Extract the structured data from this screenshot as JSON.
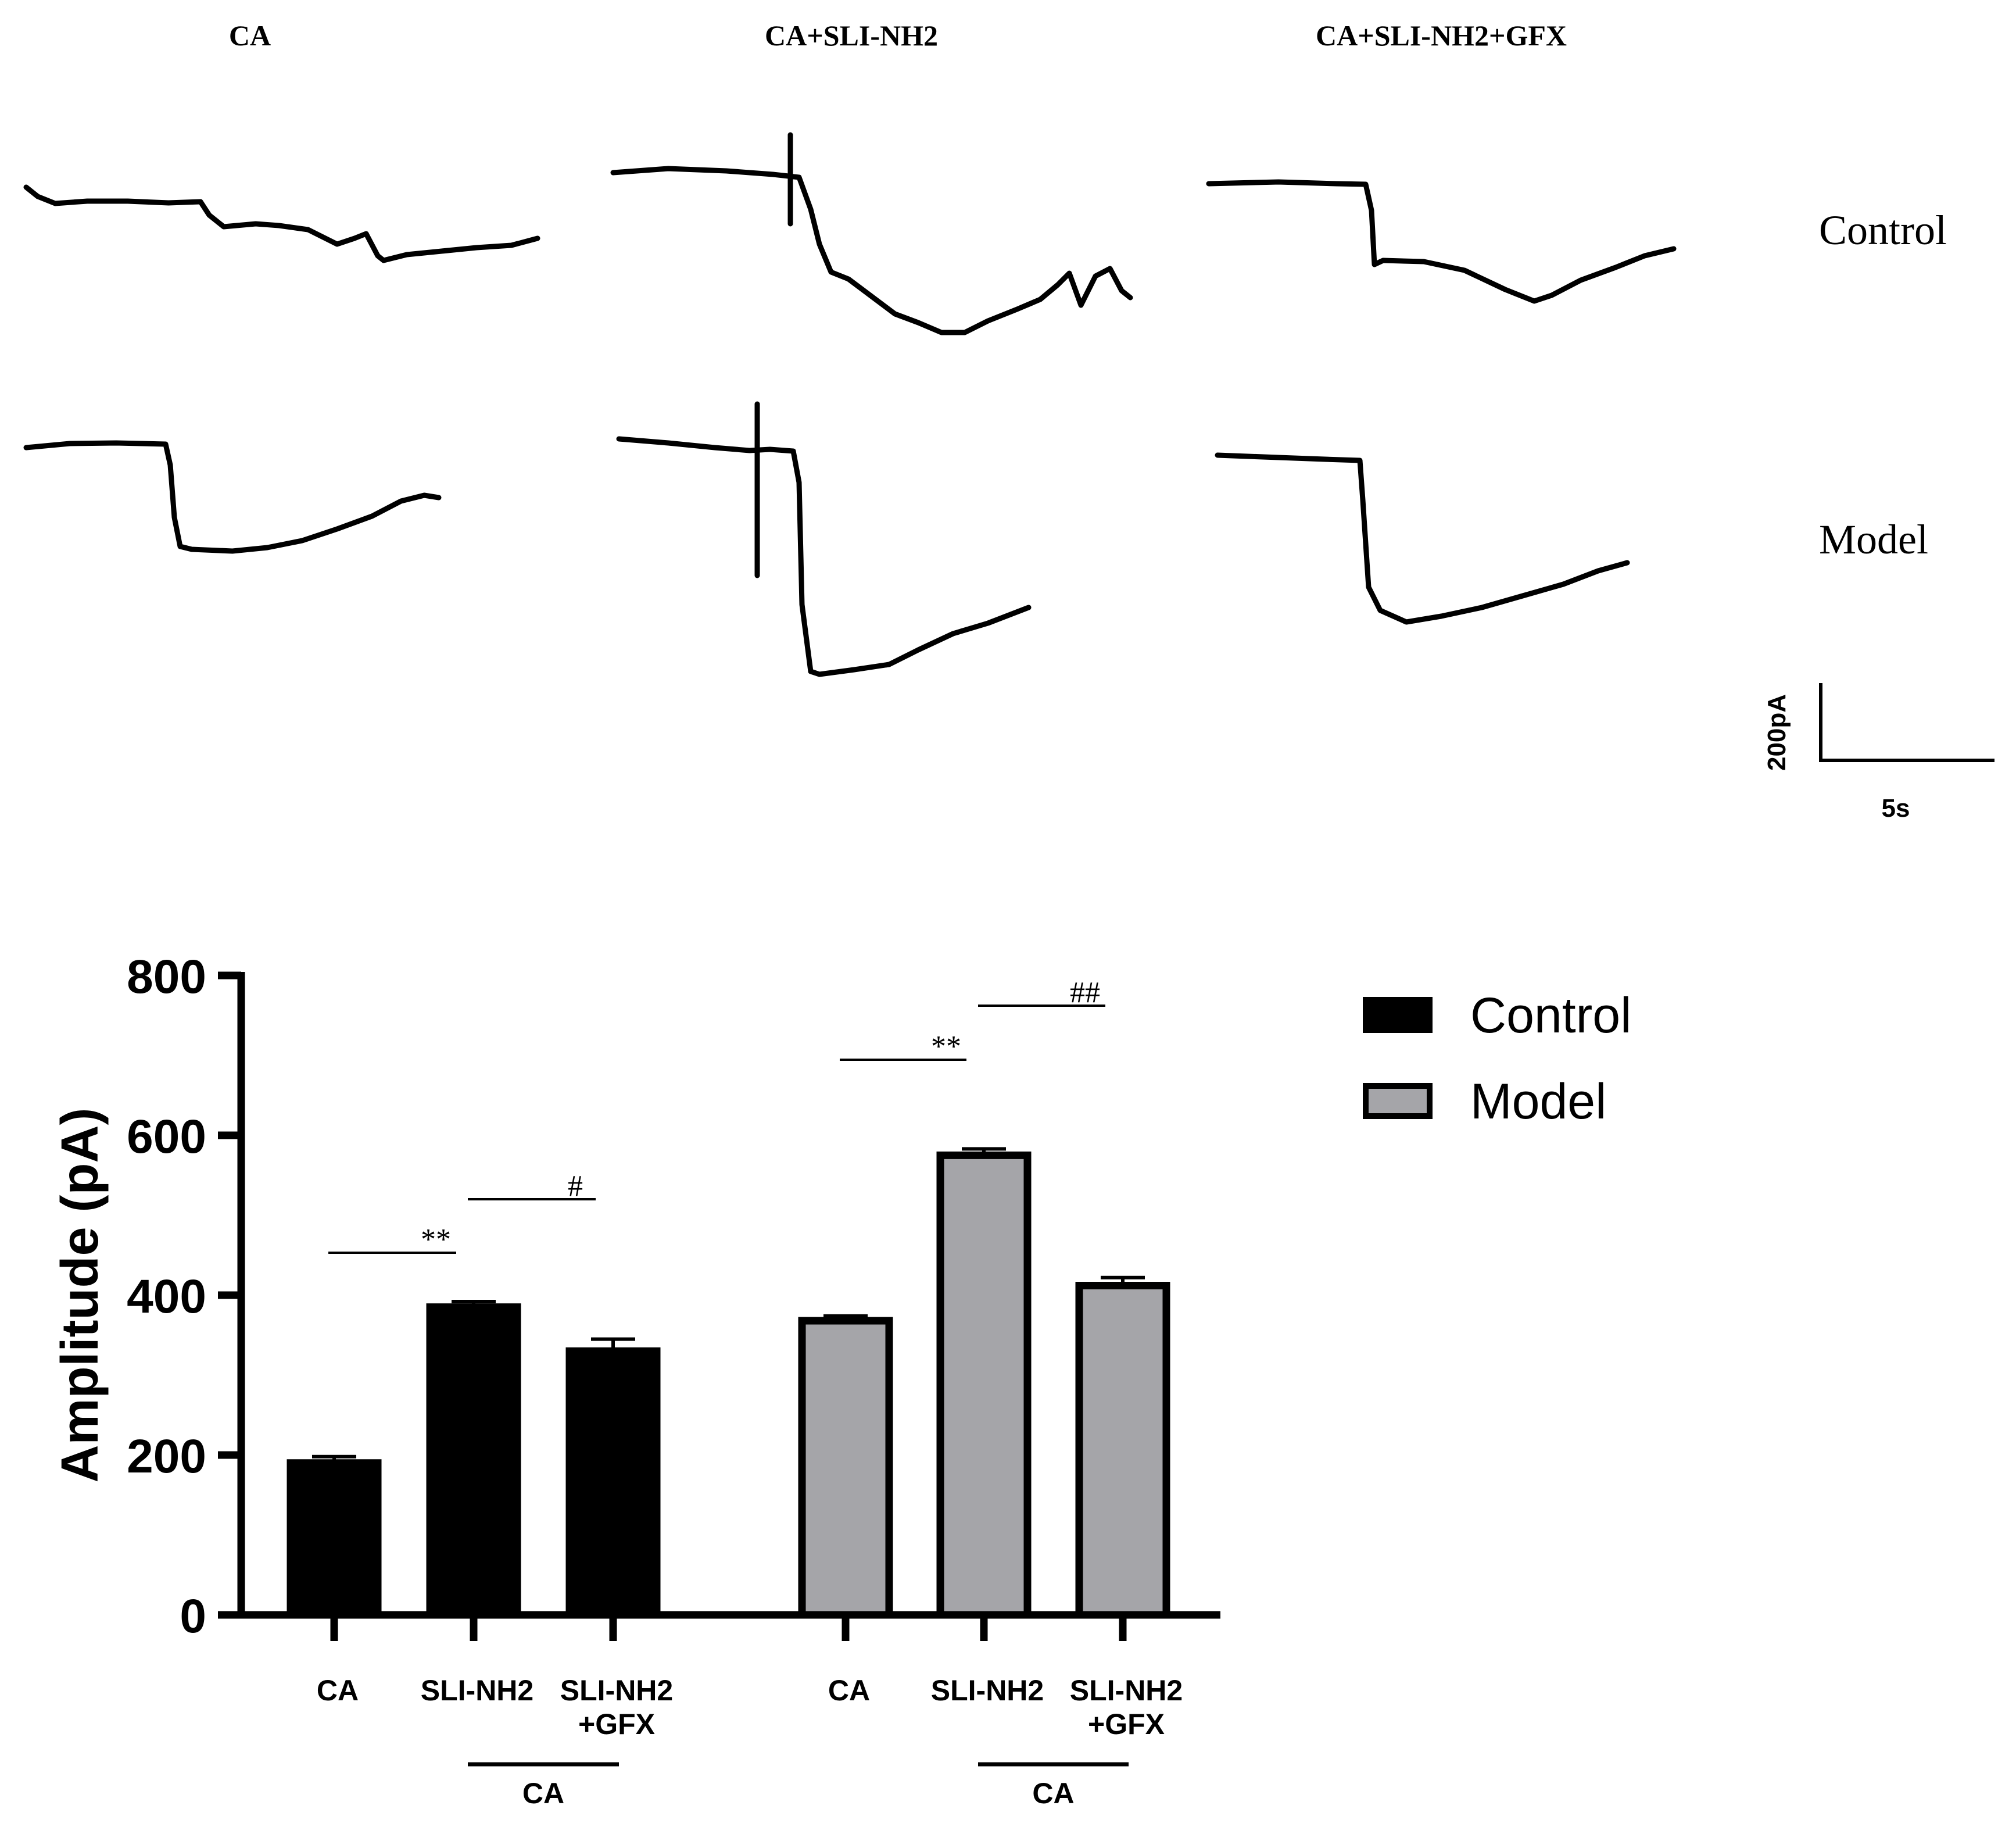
{
  "traces": {
    "column_titles": [
      "CA",
      "CA+SLI-NH2",
      "CA+SLI-NH2+GFX"
    ],
    "row_labels": [
      "Control",
      "Model"
    ],
    "scale_bar": {
      "current_label": "200pA",
      "time_label": "5s",
      "current_value_pA": 200,
      "time_value_s": 5
    },
    "colors": {
      "trace": "#000000"
    }
  },
  "chart_data": {
    "type": "bar",
    "ylabel": "Amplitude (pA)",
    "xlabel": "",
    "ylim": [
      0,
      800
    ],
    "yticks": [
      0,
      200,
      400,
      600,
      800
    ],
    "categories": [
      "CA",
      "SLI-NH2",
      "SLI-NH2\n+GFX"
    ],
    "group_underline_label": "CA",
    "series": [
      {
        "name": "Control",
        "color": "#000000",
        "values": [
          190,
          385,
          330
        ],
        "errors": [
          8,
          7,
          15
        ]
      },
      {
        "name": "Model",
        "color": "#a5a5a9",
        "values": [
          368,
          575,
          412
        ],
        "errors": [
          6,
          8,
          10
        ]
      }
    ],
    "significance": [
      {
        "series": "Control",
        "from": 0,
        "to": 1,
        "label": "**"
      },
      {
        "series": "Control",
        "from": 1,
        "to": 2,
        "label": "#"
      },
      {
        "series": "Model",
        "from": 0,
        "to": 1,
        "label": "**"
      },
      {
        "series": "Model",
        "from": 1,
        "to": 2,
        "label": "##"
      }
    ],
    "legend": {
      "placement": "top-right",
      "entries": [
        {
          "label": "Control",
          "color": "#000000"
        },
        {
          "label": "Model",
          "color": "#a5a5a9"
        }
      ]
    }
  }
}
